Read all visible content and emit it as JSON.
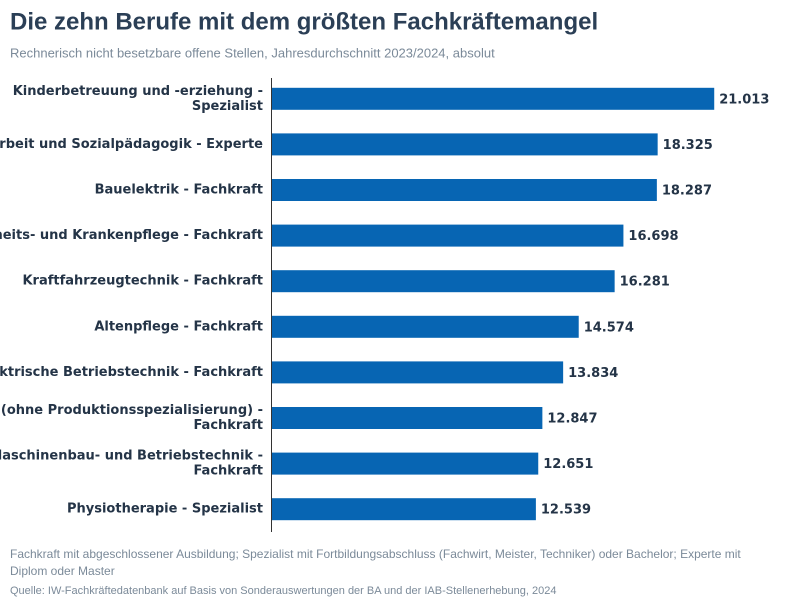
{
  "chart_data": {
    "type": "bar",
    "orientation": "horizontal",
    "title": "Die zehn Berufe mit dem größten Fachkräftemangel",
    "subtitle": "Rechnerisch nicht besetzbare offene Stellen, Jahresdurchschnitt 2023/2024, absolut",
    "categories": [
      [
        "Kinderbetreuung und -erziehung -",
        "Spezialist"
      ],
      [
        "rbeit und Sozialpädagogik - Experte"
      ],
      [
        "Bauelektrik - Fachkraft"
      ],
      [
        "heits- und Krankenpflege - Fachkraft"
      ],
      [
        "Kraftfahrzeugtechnik - Fachkraft"
      ],
      [
        "Altenpflege - Fachkraft"
      ],
      [
        "ktrische Betriebstechnik - Fachkraft"
      ],
      [
        "(ohne Produktionsspezialisierung) -",
        "Fachkraft"
      ],
      [
        "laschinenbau- und Betriebstechnik -",
        "Fachkraft"
      ],
      [
        "Physiotherapie - Spezialist"
      ]
    ],
    "values": [
      21013,
      18325,
      18287,
      16698,
      16281,
      14574,
      13834,
      12847,
      12651,
      12539
    ],
    "value_labels": [
      "21.013",
      "18.325",
      "18.287",
      "16.698",
      "16.281",
      "14.574",
      "13.834",
      "12.847",
      "12.651",
      "12.539"
    ],
    "color": "#0765b3",
    "xlim": [
      0,
      22000
    ],
    "note": [
      "Fachkraft mit abgeschlossener Ausbildung; Spezialist mit Fortbildungsabschluss (Fachwirt, Meister, Techniker) oder Bachelor; Experte mit",
      "Diplom oder Master"
    ],
    "source": "Quelle: IW-Fachkräftedatenbank auf Basis von Sonderauswertungen der BA und der IAB-Stellenerhebung, 2024"
  }
}
